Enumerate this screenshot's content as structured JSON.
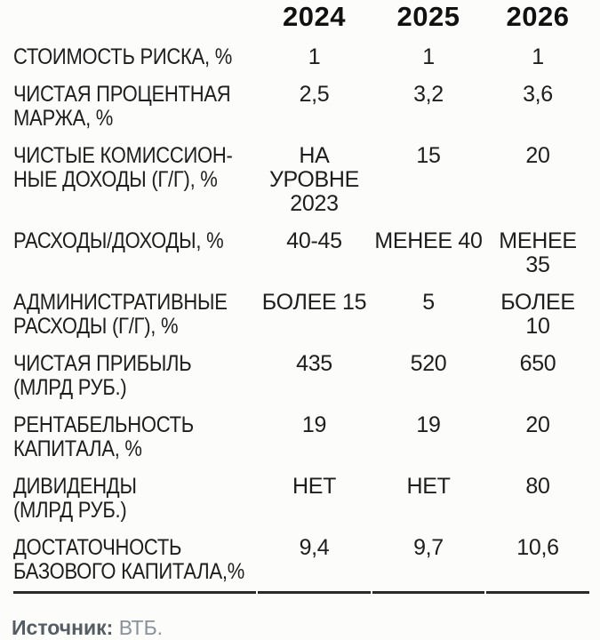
{
  "table": {
    "years": [
      "2024",
      "2025",
      "2026"
    ],
    "rows": [
      {
        "label": "СТОИМОСТЬ РИСКА, %",
        "values": [
          "1",
          "1",
          "1"
        ]
      },
      {
        "label": "ЧИСТАЯ ПРОЦЕНТНАЯ\nМАРЖА, %",
        "values": [
          "2,5",
          "3,2",
          "3,6"
        ]
      },
      {
        "label": "ЧИСТЫЕ КОМИССИОН-\nНЫЕ ДОХОДЫ (Г/Г), %",
        "values": [
          "НА УРОВНЕ\n2023",
          "15",
          "20"
        ]
      },
      {
        "label": "РАСХОДЫ/ДОХОДЫ, %",
        "values": [
          "40-45",
          "МЕНЕЕ 40",
          "МЕНЕЕ 35"
        ]
      },
      {
        "label": "АДМИНИСТРАТИВНЫЕ\nРАСХОДЫ (Г/Г), %",
        "values": [
          "БОЛЕЕ 15",
          "5",
          "БОЛЕЕ 10"
        ]
      },
      {
        "label": "ЧИСТАЯ ПРИБЫЛЬ\n(МЛРД РУБ.)",
        "values": [
          "435",
          "520",
          "650"
        ]
      },
      {
        "label": "РЕНТАБЕЛЬНОСТЬ\nКАПИТАЛА, %",
        "values": [
          "19",
          "19",
          "20"
        ]
      },
      {
        "label": "ДИВИДЕНДЫ\n(МЛРД РУБ.)",
        "values": [
          "НЕТ",
          "НЕТ",
          "80"
        ]
      },
      {
        "label": "ДОСТАТОЧНОСТЬ\nБАЗОВОГО КАПИТАЛА,%",
        "values": [
          "9,4",
          "9,7",
          "10,6"
        ]
      }
    ]
  },
  "footer": {
    "source_label": "Источник:",
    "source_value": "ВТБ."
  },
  "colors": {
    "background": "#fcfcfa",
    "text": "#1e1e1e",
    "header_text": "#111111",
    "rule": "#2a2a2a",
    "source_label": "#565c63",
    "source_value": "#8a9199"
  },
  "chart_data": {
    "type": "table",
    "title": "",
    "columns": [
      "",
      "2024",
      "2025",
      "2026"
    ],
    "rows": [
      [
        "СТОИМОСТЬ РИСКА, %",
        "1",
        "1",
        "1"
      ],
      [
        "ЧИСТАЯ ПРОЦЕНТНАЯ МАРЖА, %",
        "2,5",
        "3,2",
        "3,6"
      ],
      [
        "ЧИСТЫЕ КОМИССИОННЫЕ ДОХОДЫ (Г/Г), %",
        "НА УРОВНЕ 2023",
        "15",
        "20"
      ],
      [
        "РАСХОДЫ/ДОХОДЫ, %",
        "40-45",
        "МЕНЕЕ 40",
        "МЕНЕЕ 35"
      ],
      [
        "АДМИНИСТРАТИВНЫЕ РАСХОДЫ (Г/Г), %",
        "БОЛЕЕ 15",
        "5",
        "БОЛЕЕ 10"
      ],
      [
        "ЧИСТАЯ ПРИБЫЛЬ (МЛРД РУБ.)",
        "435",
        "520",
        "650"
      ],
      [
        "РЕНТАБЕЛЬНОСТЬ КАПИТАЛА, %",
        "19",
        "19",
        "20"
      ],
      [
        "ДИВИДЕНДЫ (МЛРД РУБ.)",
        "НЕТ",
        "НЕТ",
        "80"
      ],
      [
        "ДОСТАТОЧНОСТЬ БАЗОВОГО КАПИТАЛА,%",
        "9,4",
        "9,7",
        "10,6"
      ]
    ],
    "source": "Источник: ВТБ."
  }
}
